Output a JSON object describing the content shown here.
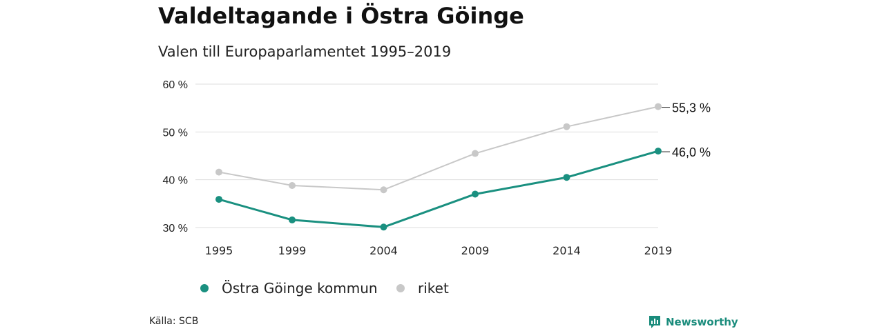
{
  "title": "Valdeltagande i Östra Göinge",
  "subtitle": "Valen till Europaparlamentet 1995–2019",
  "source": "Källa: SCB",
  "brand": "Newsworthy",
  "colors": {
    "primary": "#1a9080",
    "secondary": "#c8c8c8",
    "grid": "#dddddd",
    "brand": "#1a8c7c"
  },
  "chart_data": {
    "type": "line",
    "x": [
      "1995",
      "1999",
      "2004",
      "2009",
      "2014",
      "2019"
    ],
    "x_values": [
      1995,
      1999,
      2004,
      2009,
      2014,
      2019
    ],
    "yticks": [
      30,
      40,
      50,
      60
    ],
    "ytick_labels": [
      "30 %",
      "40 %",
      "50 %",
      "60 %"
    ],
    "ylim": [
      30,
      60
    ],
    "grid": true,
    "legend_position": "bottom-left",
    "series": [
      {
        "name": "Östra Göinge kommun",
        "color": "#1a9080",
        "values": [
          35.9,
          31.6,
          30.1,
          37.0,
          40.5,
          46.0
        ],
        "end_label": "46,0 %"
      },
      {
        "name": "riket",
        "color": "#c8c8c8",
        "values": [
          41.6,
          38.8,
          37.9,
          45.5,
          51.1,
          55.3
        ],
        "end_label": "55,3 %"
      }
    ]
  }
}
